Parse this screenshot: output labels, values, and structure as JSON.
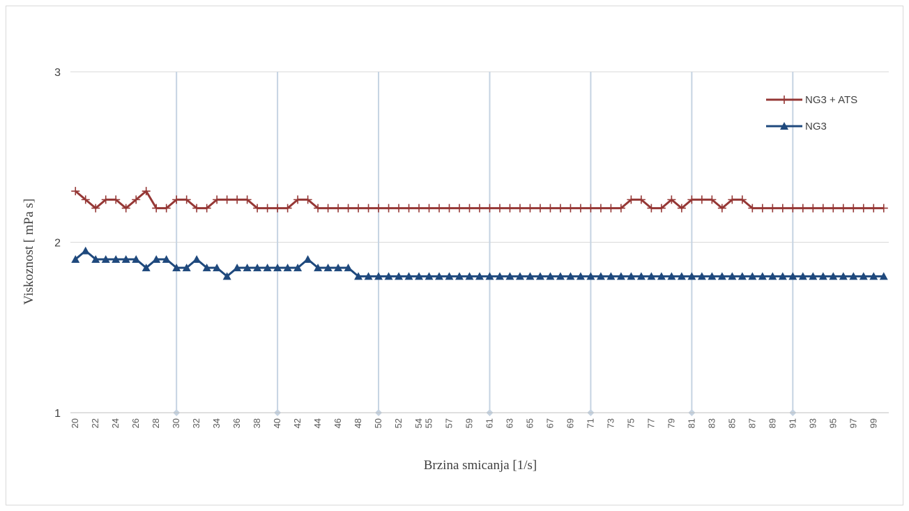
{
  "chart_data": {
    "type": "line",
    "title": "",
    "xlabel": "Brzina smicanja [1/s]",
    "ylabel": "Viskoznost  [ mPa s]",
    "ylim": [
      1,
      3
    ],
    "yticks": [
      "1",
      "2",
      "3"
    ],
    "x": [
      "20",
      "21",
      "22",
      "23",
      "24",
      "25",
      "26",
      "27",
      "28",
      "29",
      "30",
      "31",
      "32",
      "33",
      "34",
      "35",
      "36",
      "37",
      "38",
      "39",
      "40",
      "41",
      "42",
      "43",
      "44",
      "45",
      "46",
      "47",
      "48",
      "49",
      "50",
      "51",
      "52",
      "53",
      "54",
      "55",
      "56",
      "57",
      "58",
      "59",
      "60",
      "61",
      "62",
      "63",
      "64",
      "65",
      "66",
      "67",
      "68",
      "69",
      "70",
      "71",
      "72",
      "73",
      "74",
      "75",
      "76",
      "77",
      "78",
      "79",
      "80",
      "81",
      "82",
      "83",
      "84",
      "85",
      "86",
      "87",
      "88",
      "89",
      "90",
      "91",
      "92",
      "93",
      "94",
      "95",
      "96",
      "97",
      "98",
      "99",
      "100"
    ],
    "x_tick_labels": [
      "20",
      "22",
      "24",
      "26",
      "28",
      "30",
      "32",
      "34",
      "36",
      "38",
      "40",
      "42",
      "44",
      "46",
      "48",
      "50",
      "52",
      "54",
      "55",
      "57",
      "59",
      "61",
      "63",
      "65",
      "67",
      "69",
      "71",
      "73",
      "75",
      "77",
      "79",
      "81",
      "83",
      "85",
      "87",
      "89",
      "91",
      "93",
      "95",
      "97",
      "99"
    ],
    "series": [
      {
        "name": "NG3 + ATS",
        "color": "#953735",
        "marker": "plus",
        "values": [
          2.3,
          2.25,
          2.2,
          2.25,
          2.25,
          2.2,
          2.25,
          2.3,
          2.2,
          2.2,
          2.25,
          2.25,
          2.2,
          2.2,
          2.25,
          2.25,
          2.25,
          2.25,
          2.2,
          2.2,
          2.2,
          2.2,
          2.25,
          2.25,
          2.2,
          2.2,
          2.2,
          2.2,
          2.2,
          2.2,
          2.2,
          2.2,
          2.2,
          2.2,
          2.2,
          2.2,
          2.2,
          2.2,
          2.2,
          2.2,
          2.2,
          2.2,
          2.2,
          2.2,
          2.2,
          2.2,
          2.2,
          2.2,
          2.2,
          2.2,
          2.2,
          2.2,
          2.2,
          2.2,
          2.2,
          2.25,
          2.25,
          2.2,
          2.2,
          2.25,
          2.2,
          2.25,
          2.25,
          2.25,
          2.2,
          2.25,
          2.25,
          2.2,
          2.2,
          2.2,
          2.2,
          2.2,
          2.2,
          2.2,
          2.2,
          2.2,
          2.2,
          2.2,
          2.2,
          2.2,
          2.2
        ]
      },
      {
        "name": "NG3",
        "color": "#1f497d",
        "marker": "triangle",
        "values": [
          1.9,
          1.95,
          1.9,
          1.9,
          1.9,
          1.9,
          1.9,
          1.85,
          1.9,
          1.9,
          1.85,
          1.85,
          1.9,
          1.85,
          1.85,
          1.8,
          1.85,
          1.85,
          1.85,
          1.85,
          1.85,
          1.85,
          1.85,
          1.9,
          1.85,
          1.85,
          1.85,
          1.85,
          1.8,
          1.8,
          1.8,
          1.8,
          1.8,
          1.8,
          1.8,
          1.8,
          1.8,
          1.8,
          1.8,
          1.8,
          1.8,
          1.8,
          1.8,
          1.8,
          1.8,
          1.8,
          1.8,
          1.8,
          1.8,
          1.8,
          1.8,
          1.8,
          1.8,
          1.8,
          1.8,
          1.8,
          1.8,
          1.8,
          1.8,
          1.8,
          1.8,
          1.8,
          1.8,
          1.8,
          1.8,
          1.8,
          1.8,
          1.8,
          1.8,
          1.8,
          1.8,
          1.8,
          1.8,
          1.8,
          1.8,
          1.8,
          1.8,
          1.8,
          1.8,
          1.8,
          1.8
        ]
      }
    ],
    "drop_lines": [
      {
        "x_label": "30",
        "y": 1
      },
      {
        "x_label": "40",
        "y": 1
      },
      {
        "x_label": "50",
        "y": 1
      },
      {
        "x_label": "61",
        "y": 1
      },
      {
        "x_label": "71",
        "y": 1
      },
      {
        "x_label": "81",
        "y": 1
      },
      {
        "x_label": "91",
        "y": 1
      }
    ],
    "drop_line_color": "#c5d3e2",
    "grid": true,
    "legend_position": "top-right"
  }
}
